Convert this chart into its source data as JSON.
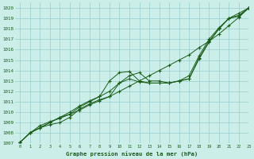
{
  "title": "Graphe pression niveau de la mer (hPa)",
  "bg_color": "#cceee8",
  "grid_color": "#99cccc",
  "line_color": "#1a5c1a",
  "xlim": [
    -0.5,
    23
  ],
  "ylim": [
    1007,
    1020.5
  ],
  "yticks": [
    1007,
    1008,
    1009,
    1010,
    1011,
    1012,
    1013,
    1014,
    1015,
    1016,
    1017,
    1018,
    1019,
    1020
  ],
  "xticks": [
    0,
    1,
    2,
    3,
    4,
    5,
    6,
    7,
    8,
    9,
    10,
    11,
    12,
    13,
    14,
    15,
    16,
    17,
    18,
    19,
    20,
    21,
    22,
    23
  ],
  "series": [
    [
      1007.1,
      1008.0,
      1008.5,
      1009.0,
      1009.5,
      1009.8,
      1010.2,
      1010.7,
      1011.1,
      1011.5,
      1012.0,
      1012.5,
      1013.0,
      1013.5,
      1014.0,
      1014.5,
      1015.0,
      1015.5,
      1016.2,
      1016.8,
      1017.5,
      1018.3,
      1019.1,
      1020.0
    ],
    [
      1007.1,
      1008.0,
      1008.7,
      1009.1,
      1009.4,
      1009.8,
      1010.5,
      1011.0,
      1011.5,
      1013.0,
      1013.8,
      1013.9,
      1013.0,
      1012.8,
      1012.8,
      1012.8,
      1013.0,
      1013.2,
      1015.2,
      1016.8,
      1018.0,
      1019.0,
      1019.2,
      1020.0
    ],
    [
      1007.1,
      1008.0,
      1008.5,
      1009.0,
      1009.5,
      1010.0,
      1010.6,
      1011.1,
      1011.5,
      1012.0,
      1012.8,
      1013.2,
      1012.9,
      1012.8,
      1012.8,
      1012.8,
      1013.0,
      1013.2,
      1015.1,
      1016.7,
      1018.0,
      1019.0,
      1019.3,
      1020.0
    ],
    [
      1007.1,
      1008.0,
      1008.5,
      1008.8,
      1009.0,
      1009.5,
      1010.3,
      1010.8,
      1011.2,
      1011.5,
      1012.8,
      1013.5,
      1013.8,
      1013.0,
      1013.0,
      1012.8,
      1013.0,
      1013.5,
      1015.4,
      1017.0,
      1018.1,
      1019.0,
      1019.5,
      1020.0
    ]
  ]
}
